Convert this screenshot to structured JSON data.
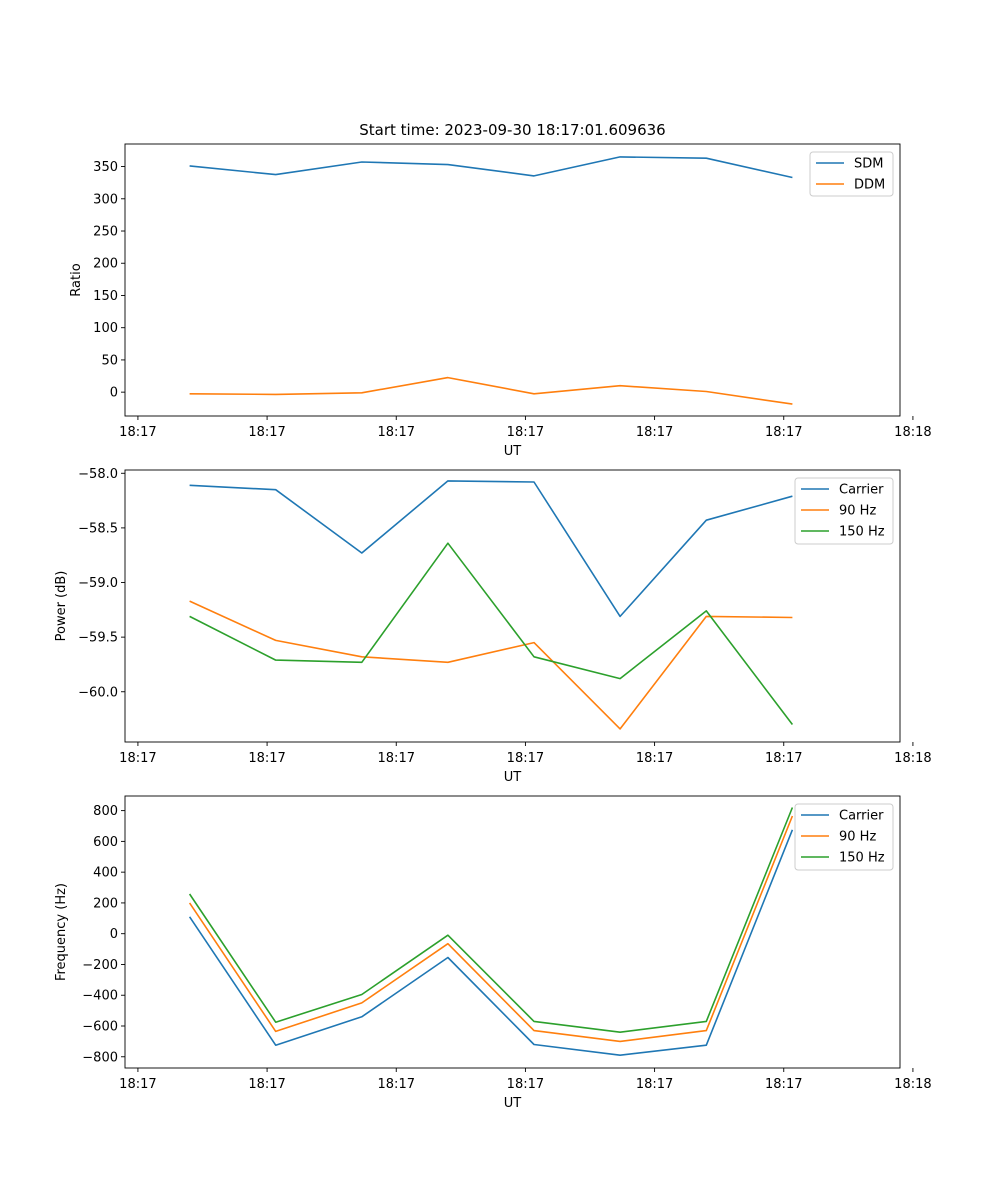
{
  "figure_title": "Start time: 2023-09-30 18:17:01.609636",
  "chart_data": [
    {
      "type": "line",
      "title": "Start time: 2023-09-30 18:17:01.609636",
      "xlabel": "UT",
      "ylabel": "Ratio",
      "x_positions": [
        0.6,
        1.6,
        2.6,
        3.6,
        4.6,
        5.6,
        6.6,
        7.6
      ],
      "xlim": [
        -0.15,
        8.85
      ],
      "x_ticks": [
        0,
        1.5,
        3,
        4.5,
        6,
        7.5,
        9
      ],
      "x_tick_labels": [
        "18:17",
        "18:17",
        "18:17",
        "18:17",
        "18:17",
        "18:17",
        "18:18"
      ],
      "ylim": [
        -37,
        385
      ],
      "y_ticks": [
        0,
        50,
        100,
        150,
        200,
        250,
        300,
        350
      ],
      "y_tick_labels": [
        "0",
        "50",
        "100",
        "150",
        "200",
        "250",
        "300",
        "350"
      ],
      "legend_position": "top-right",
      "series": [
        {
          "name": "SDM",
          "color": "#1f77b4",
          "values": [
            351,
            337.5,
            357,
            353,
            335.5,
            365,
            363,
            333
          ]
        },
        {
          "name": "DDM",
          "color": "#ff7f0e",
          "values": [
            -2.5,
            -3.5,
            -1,
            22.5,
            -2.5,
            10,
            1,
            -18.5
          ]
        }
      ]
    },
    {
      "type": "line",
      "title": "",
      "xlabel": "UT",
      "ylabel": "Power (dB)",
      "x_positions": [
        0.6,
        1.6,
        2.6,
        3.6,
        4.6,
        5.6,
        6.6,
        7.6
      ],
      "xlim": [
        -0.15,
        8.85
      ],
      "x_ticks": [
        0,
        1.5,
        3,
        4.5,
        6,
        7.5,
        9
      ],
      "x_tick_labels": [
        "18:17",
        "18:17",
        "18:17",
        "18:17",
        "18:17",
        "18:17",
        "18:18"
      ],
      "ylim": [
        -60.46,
        -57.97
      ],
      "y_ticks": [
        -58.0,
        -58.5,
        -59.0,
        -59.5,
        -60.0
      ],
      "y_tick_labels": [
        "−58.0",
        "−58.5",
        "−59.0",
        "−59.5",
        "−60.0"
      ],
      "legend_position": "top-right",
      "series": [
        {
          "name": "Carrier",
          "color": "#1f77b4",
          "values": [
            -58.11,
            -58.15,
            -58.73,
            -58.07,
            -58.08,
            -59.31,
            -58.43,
            -58.21
          ]
        },
        {
          "name": "90 Hz",
          "color": "#ff7f0e",
          "values": [
            -59.17,
            -59.53,
            -59.68,
            -59.73,
            -59.55,
            -60.34,
            -59.31,
            -59.32
          ]
        },
        {
          "name": "150 Hz",
          "color": "#2ca02c",
          "values": [
            -59.31,
            -59.71,
            -59.73,
            -58.64,
            -59.68,
            -59.88,
            -59.26,
            -60.3
          ]
        }
      ]
    },
    {
      "type": "line",
      "title": "",
      "xlabel": "UT",
      "ylabel": "Frequency (Hz)",
      "x_positions": [
        0.6,
        1.6,
        2.6,
        3.6,
        4.6,
        5.6,
        6.6,
        7.6
      ],
      "xlim": [
        -0.15,
        8.85
      ],
      "x_ticks": [
        0,
        1.5,
        3,
        4.5,
        6,
        7.5,
        9
      ],
      "x_tick_labels": [
        "18:17",
        "18:17",
        "18:17",
        "18:17",
        "18:17",
        "18:17",
        "18:18"
      ],
      "ylim": [
        -873,
        895
      ],
      "y_ticks": [
        800,
        600,
        400,
        200,
        0,
        -200,
        -400,
        -600,
        -800
      ],
      "y_tick_labels": [
        "800",
        "600",
        "400",
        "200",
        "0",
        "−200",
        "−400",
        "−600",
        "−800"
      ],
      "legend_position": "top-right",
      "series": [
        {
          "name": "Carrier",
          "color": "#1f77b4",
          "values": [
            110,
            -725,
            -540,
            -155,
            -720,
            -790,
            -725,
            675
          ]
        },
        {
          "name": "90 Hz",
          "color": "#ff7f0e",
          "values": [
            200,
            -635,
            -450,
            -65,
            -630,
            -700,
            -630,
            765
          ]
        },
        {
          "name": "150 Hz",
          "color": "#2ca02c",
          "values": [
            258,
            -575,
            -395,
            -10,
            -570,
            -640,
            -570,
            820
          ]
        }
      ]
    }
  ]
}
